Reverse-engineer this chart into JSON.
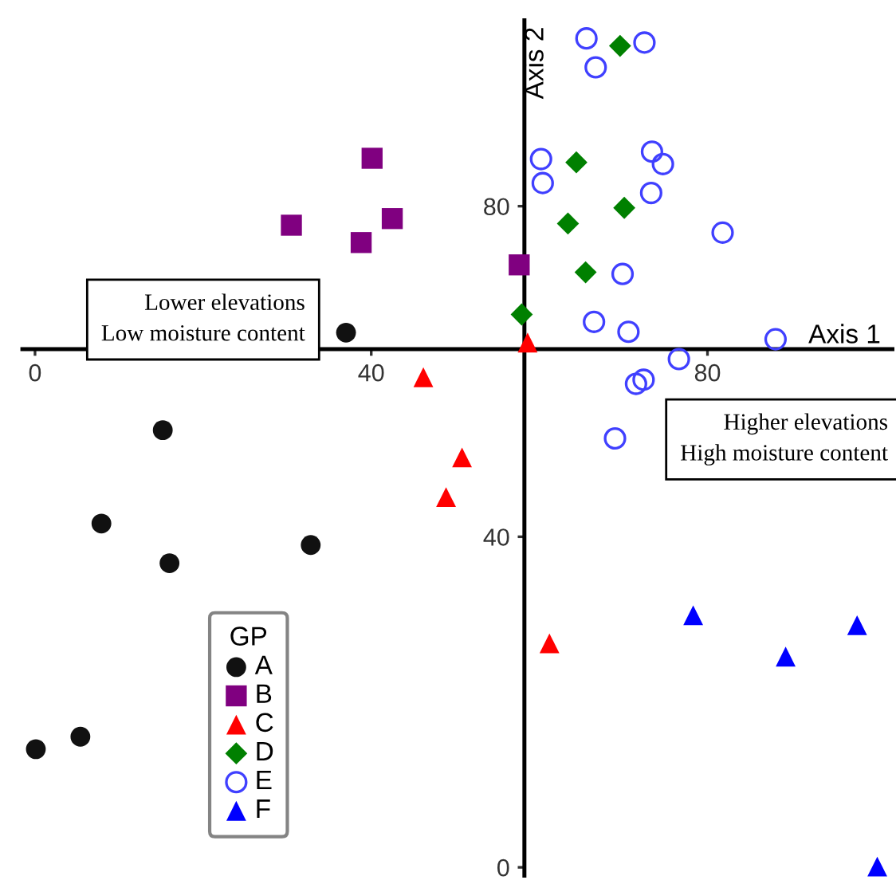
{
  "chart_data": {
    "type": "scatter",
    "xlabel": "Axis 1",
    "ylabel": "Axis 2",
    "legend_title": "GP",
    "xlim": [
      -1.5,
      102
    ],
    "ylim": [
      -1,
      102.5
    ],
    "xticks": [
      0,
      40,
      80
    ],
    "yticks": [
      0,
      40,
      80
    ],
    "grid": false,
    "legend": "bottom left",
    "annotations": [
      "Lower elevations\nLow moisture content",
      "Higher elevations\nHigh moisture content"
    ],
    "series": [
      {
        "name": "A",
        "color": "#111111",
        "marker": "circle",
        "x": [
          37.0,
          15.2,
          7.9,
          16.0,
          32.8,
          5.4,
          0.1
        ],
        "values": [
          64.7,
          52.9,
          41.6,
          36.8,
          39.0,
          15.8,
          14.3
        ]
      },
      {
        "name": "B",
        "color": "#800080",
        "marker": "square",
        "x": [
          40.1,
          42.5,
          30.5,
          38.8,
          57.6
        ],
        "values": [
          85.8,
          78.5,
          77.7,
          75.6,
          72.9
        ]
      },
      {
        "name": "C",
        "color": "#ff0000",
        "marker": "triangle",
        "x": [
          58.6,
          46.2,
          50.8,
          48.9,
          61.2
        ],
        "values": [
          63.5,
          59.3,
          49.6,
          44.8,
          27.1
        ]
      },
      {
        "name": "D",
        "color": "#008000",
        "marker": "diamond",
        "x": [
          69.6,
          64.4,
          70.1,
          63.4,
          65.5,
          57.9
        ],
        "values": [
          99.4,
          85.3,
          79.8,
          77.9,
          72.0,
          66.9
        ]
      },
      {
        "name": "E",
        "color": "#4040ff",
        "marker": "circle-open",
        "x": [
          65.6,
          72.5,
          66.7,
          60.2,
          60.4,
          73.4,
          74.7,
          73.3,
          81.8,
          69.9,
          66.5,
          70.6,
          88.1,
          76.6,
          71.5,
          72.4,
          69.0
        ],
        "values": [
          100.3,
          99.8,
          96.8,
          85.7,
          82.8,
          86.6,
          85.1,
          81.6,
          76.8,
          71.8,
          66.0,
          64.8,
          63.9,
          61.5,
          58.5,
          59.0,
          51.9
        ]
      },
      {
        "name": "F",
        "color": "#0000ff",
        "marker": "triangle",
        "x": [
          78.3,
          89.3,
          97.8,
          100.2
        ],
        "values": [
          30.5,
          25.5,
          29.3,
          0.1
        ]
      }
    ]
  }
}
